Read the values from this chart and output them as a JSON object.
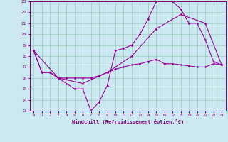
{
  "xlabel": "Windchill (Refroidissement éolien,°C)",
  "background_color": "#cce8f0",
  "grid_color": "#99ccbb",
  "line_color": "#990099",
  "xlim": [
    -0.5,
    23.5
  ],
  "ylim": [
    13,
    23
  ],
  "yticks": [
    13,
    14,
    15,
    16,
    17,
    18,
    19,
    20,
    21,
    22,
    23
  ],
  "xticks": [
    0,
    1,
    2,
    3,
    4,
    5,
    6,
    7,
    8,
    9,
    10,
    11,
    12,
    13,
    14,
    15,
    16,
    17,
    18,
    19,
    20,
    21,
    22,
    23
  ],
  "line1_x": [
    0,
    1,
    2,
    3,
    4,
    5,
    6,
    7,
    8,
    9,
    10,
    11,
    12,
    13,
    14,
    15,
    16,
    17,
    18,
    19,
    20,
    21,
    22,
    23
  ],
  "line1_y": [
    18.5,
    16.5,
    16.5,
    16.0,
    15.5,
    15.0,
    15.0,
    13.0,
    13.8,
    15.3,
    18.5,
    18.7,
    19.0,
    20.0,
    21.4,
    23.0,
    23.2,
    23.0,
    22.3,
    21.0,
    21.0,
    19.5,
    17.5,
    17.2
  ],
  "line2_x": [
    0,
    1,
    2,
    3,
    4,
    5,
    6,
    7,
    8,
    9,
    10,
    11,
    12,
    13,
    14,
    15,
    16,
    17,
    18,
    19,
    20,
    21,
    22,
    23
  ],
  "line2_y": [
    18.5,
    16.5,
    16.5,
    16.0,
    16.0,
    16.0,
    16.0,
    16.0,
    16.2,
    16.5,
    16.8,
    17.0,
    17.2,
    17.3,
    17.5,
    17.7,
    17.3,
    17.3,
    17.2,
    17.1,
    17.0,
    17.0,
    17.3,
    17.2
  ],
  "line3_x": [
    0,
    3,
    6,
    9,
    12,
    15,
    18,
    21,
    23
  ],
  "line3_y": [
    18.5,
    16.0,
    15.5,
    16.5,
    18.0,
    20.5,
    21.8,
    21.0,
    17.2
  ]
}
